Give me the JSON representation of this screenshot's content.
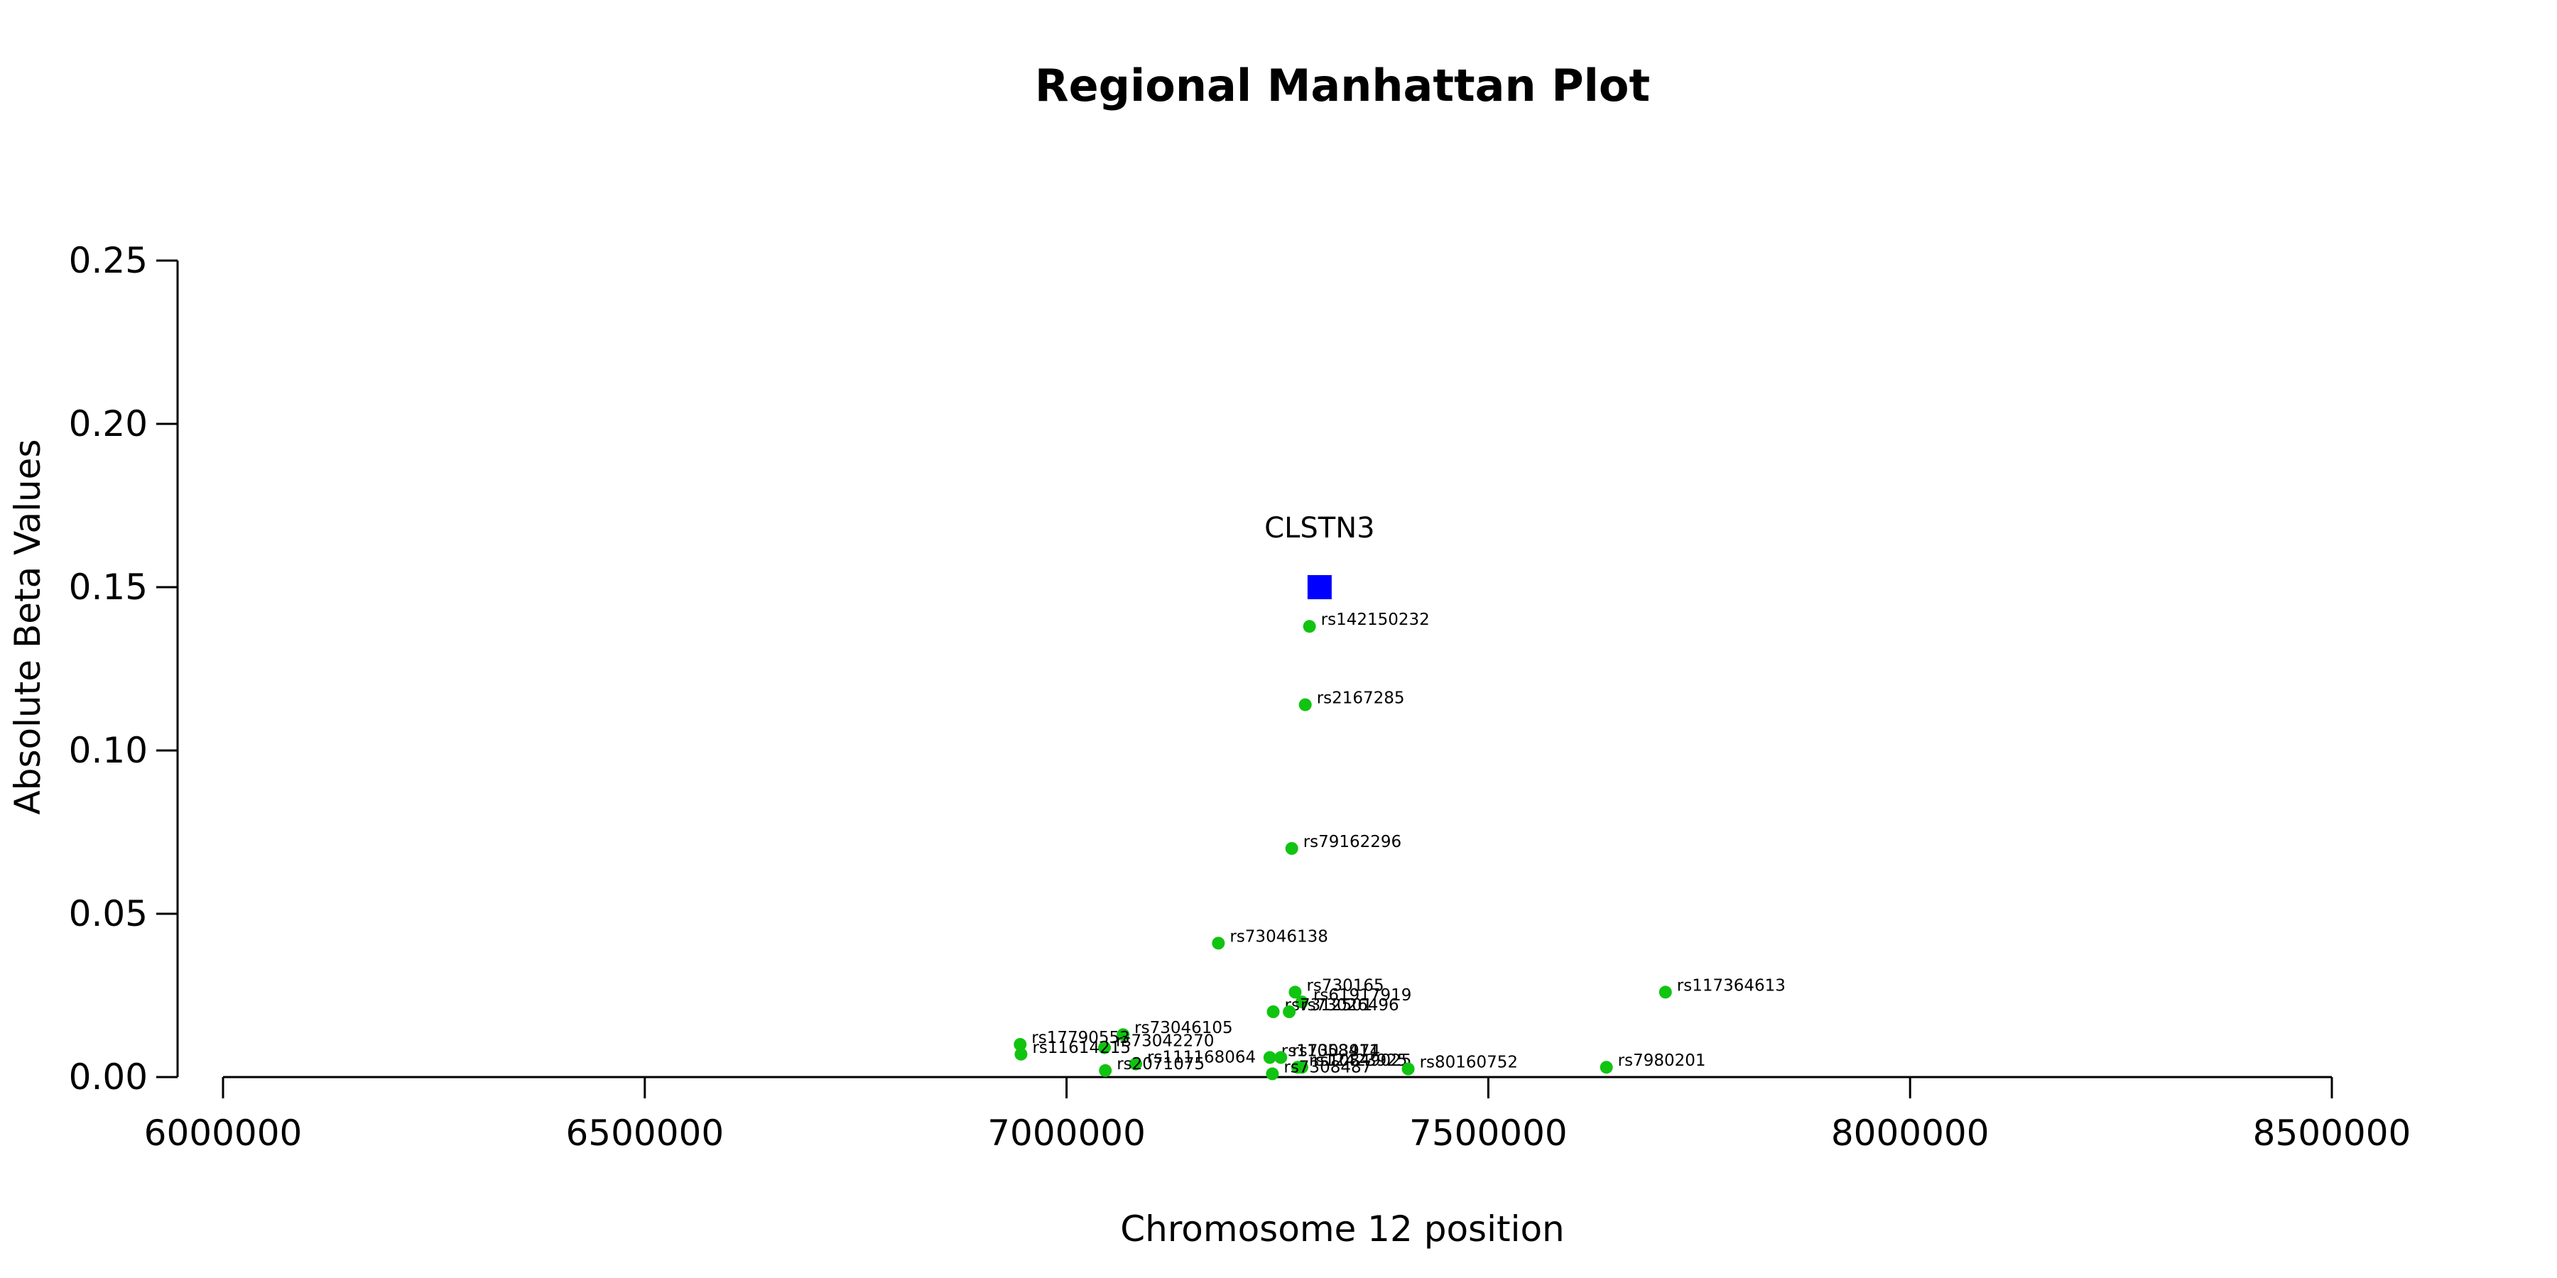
{
  "chart_data": {
    "type": "scatter",
    "title": "Regional Manhattan Plot",
    "xlabel": "Chromosome 12 position",
    "ylabel": "Absolute Beta Values",
    "xlim": [
      6000000,
      8500000
    ],
    "ylim": [
      0,
      0.25
    ],
    "xticks": [
      "6000000",
      "6500000",
      "7000000",
      "7500000",
      "8000000",
      "8500000"
    ],
    "yticks": [
      "0.00",
      "0.05",
      "0.10",
      "0.15",
      "0.20",
      "0.25"
    ],
    "grid": false,
    "gene": {
      "name": "CLSTN3",
      "x": 7300000,
      "y": 0.15,
      "color": "#0000ff",
      "marker": "square"
    },
    "series": [
      {
        "color": "#11c411",
        "points": [
          {
            "label": "rs142150232",
            "x": 7288000,
            "y": 0.138
          },
          {
            "label": "rs2167285",
            "x": 7283000,
            "y": 0.114
          },
          {
            "label": "rs79162296",
            "x": 7267000,
            "y": 0.07
          },
          {
            "label": "rs73046138",
            "x": 7180000,
            "y": 0.041
          },
          {
            "label": "rs117364613",
            "x": 7710000,
            "y": 0.026
          },
          {
            "label": "rs730165",
            "x": 7271000,
            "y": 0.026
          },
          {
            "label": "rs61917919",
            "x": 7279000,
            "y": 0.023
          },
          {
            "label": "rs7312501",
            "x": 7245000,
            "y": 0.02
          },
          {
            "label": "rs73026496",
            "x": 7264000,
            "y": 0.02
          },
          {
            "label": "rs73046105",
            "x": 7067000,
            "y": 0.013
          },
          {
            "label": "rs17790553",
            "x": 6945000,
            "y": 0.01
          },
          {
            "label": "rs73042270",
            "x": 7045000,
            "y": 0.009
          },
          {
            "label": "rs11614215",
            "x": 6946000,
            "y": 0.007
          },
          {
            "label": "rs11058411",
            "x": 7241000,
            "y": 0.006
          },
          {
            "label": "rs7303974",
            "x": 7254000,
            "y": 0.006
          },
          {
            "label": "rs111168064",
            "x": 7082000,
            "y": 0.004
          },
          {
            "label": "rs12423925",
            "x": 7274000,
            "y": 0.003
          },
          {
            "label": "rs10849025",
            "x": 7279000,
            "y": 0.003
          },
          {
            "label": "rs80160752",
            "x": 7405000,
            "y": 0.0025
          },
          {
            "label": "rs7980201",
            "x": 7640000,
            "y": 0.003
          },
          {
            "label": "rs2071075",
            "x": 7046000,
            "y": 0.002
          },
          {
            "label": "rs7308487",
            "x": 7244000,
            "y": 0.001
          }
        ]
      }
    ]
  }
}
